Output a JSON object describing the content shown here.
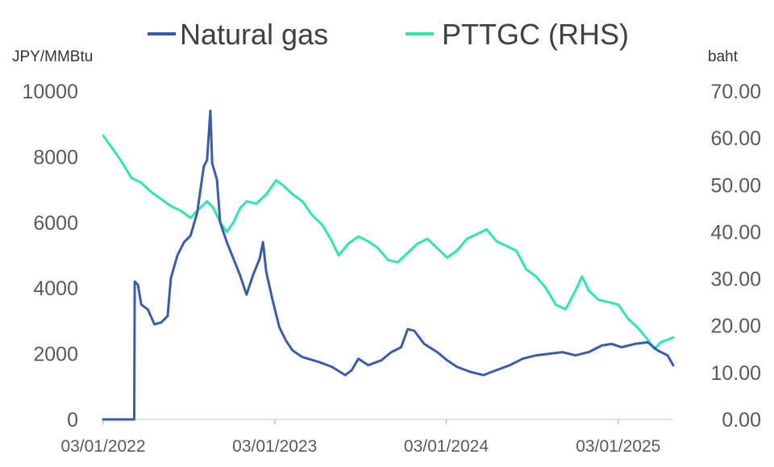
{
  "chart_data": {
    "type": "line",
    "legend_position": "top",
    "grid": false,
    "left_axis_label": "JPY/MMBtu",
    "right_axis_label": "baht",
    "y_left_ticks": [
      "0",
      "2000",
      "4000",
      "6000",
      "8000",
      "10000"
    ],
    "y_left_range": [
      0,
      10000
    ],
    "y_right_ticks": [
      "0.00",
      "10.00",
      "20.00",
      "30.00",
      "40.00",
      "50.00",
      "60.00",
      "70.00"
    ],
    "y_right_range": [
      0,
      70
    ],
    "x_ticks": [
      "03/01/2022",
      "03/01/2023",
      "03/01/2024",
      "03/01/2025"
    ],
    "x_range": [
      "2022-01-03",
      "2025-04-30"
    ],
    "series": [
      {
        "name": "Natural gas",
        "axis": "left",
        "color": "#3b5bad",
        "points": [
          [
            "2022-01-03",
            0
          ],
          [
            "2022-03-10",
            0
          ],
          [
            "2022-03-11",
            4200
          ],
          [
            "2022-03-18",
            4100
          ],
          [
            "2022-03-25",
            3500
          ],
          [
            "2022-04-08",
            3350
          ],
          [
            "2022-04-22",
            2900
          ],
          [
            "2022-05-06",
            2950
          ],
          [
            "2022-05-20",
            3150
          ],
          [
            "2022-05-27",
            4300
          ],
          [
            "2022-06-10",
            5000
          ],
          [
            "2022-06-24",
            5400
          ],
          [
            "2022-07-08",
            5600
          ],
          [
            "2022-07-22",
            6300
          ],
          [
            "2022-08-05",
            7700
          ],
          [
            "2022-08-12",
            7900
          ],
          [
            "2022-08-19",
            9400
          ],
          [
            "2022-08-23",
            7800
          ],
          [
            "2022-09-02",
            7300
          ],
          [
            "2022-09-09",
            6000
          ],
          [
            "2022-09-23",
            5400
          ],
          [
            "2022-10-07",
            4900
          ],
          [
            "2022-10-21",
            4400
          ],
          [
            "2022-11-04",
            3800
          ],
          [
            "2022-11-18",
            4400
          ],
          [
            "2022-12-02",
            4900
          ],
          [
            "2022-12-09",
            5400
          ],
          [
            "2022-12-16",
            4500
          ],
          [
            "2022-12-30",
            3600
          ],
          [
            "2023-01-13",
            2800
          ],
          [
            "2023-01-27",
            2400
          ],
          [
            "2023-02-10",
            2100
          ],
          [
            "2023-03-03",
            1900
          ],
          [
            "2023-04-07",
            1750
          ],
          [
            "2023-05-05",
            1600
          ],
          [
            "2023-06-02",
            1350
          ],
          [
            "2023-06-16",
            1500
          ],
          [
            "2023-06-30",
            1850
          ],
          [
            "2023-07-21",
            1650
          ],
          [
            "2023-08-18",
            1800
          ],
          [
            "2023-09-08",
            2050
          ],
          [
            "2023-09-29",
            2200
          ],
          [
            "2023-10-13",
            2750
          ],
          [
            "2023-10-27",
            2700
          ],
          [
            "2023-11-17",
            2300
          ],
          [
            "2023-12-15",
            2050
          ],
          [
            "2024-01-05",
            1800
          ],
          [
            "2024-01-26",
            1600
          ],
          [
            "2024-02-23",
            1450
          ],
          [
            "2024-03-22",
            1350
          ],
          [
            "2024-04-19",
            1500
          ],
          [
            "2024-05-17",
            1650
          ],
          [
            "2024-06-14",
            1850
          ],
          [
            "2024-07-12",
            1950
          ],
          [
            "2024-08-09",
            2000
          ],
          [
            "2024-09-06",
            2050
          ],
          [
            "2024-10-04",
            1950
          ],
          [
            "2024-11-01",
            2050
          ],
          [
            "2024-11-29",
            2250
          ],
          [
            "2024-12-20",
            2300
          ],
          [
            "2025-01-10",
            2200
          ],
          [
            "2025-02-07",
            2300
          ],
          [
            "2025-03-07",
            2350
          ],
          [
            "2025-03-28",
            2100
          ],
          [
            "2025-04-18",
            1950
          ],
          [
            "2025-04-30",
            1650
          ]
        ]
      },
      {
        "name": "PTTGC (RHS)",
        "axis": "right",
        "color": "#2ee6b0",
        "points": [
          [
            "2022-01-03",
            60.5
          ],
          [
            "2022-01-21",
            58.0
          ],
          [
            "2022-02-11",
            55.0
          ],
          [
            "2022-03-04",
            51.5
          ],
          [
            "2022-03-25",
            50.5
          ],
          [
            "2022-04-15",
            48.5
          ],
          [
            "2022-05-06",
            47.0
          ],
          [
            "2022-05-27",
            45.5
          ],
          [
            "2022-06-17",
            44.5
          ],
          [
            "2022-07-08",
            43.0
          ],
          [
            "2022-07-22",
            44.5
          ],
          [
            "2022-08-12",
            46.5
          ],
          [
            "2022-08-26",
            45.0
          ],
          [
            "2022-09-09",
            42.0
          ],
          [
            "2022-09-23",
            40.0
          ],
          [
            "2022-10-07",
            42.0
          ],
          [
            "2022-10-21",
            45.0
          ],
          [
            "2022-11-04",
            46.5
          ],
          [
            "2022-11-25",
            46.0
          ],
          [
            "2022-12-16",
            48.0
          ],
          [
            "2023-01-06",
            51.0
          ],
          [
            "2023-01-20",
            50.0
          ],
          [
            "2023-02-10",
            48.0
          ],
          [
            "2023-03-03",
            46.5
          ],
          [
            "2023-03-24",
            43.5
          ],
          [
            "2023-04-14",
            41.5
          ],
          [
            "2023-05-05",
            38.0
          ],
          [
            "2023-05-19",
            35.0
          ],
          [
            "2023-06-09",
            37.5
          ],
          [
            "2023-06-30",
            39.0
          ],
          [
            "2023-07-21",
            38.0
          ],
          [
            "2023-08-11",
            36.5
          ],
          [
            "2023-09-01",
            34.0
          ],
          [
            "2023-09-22",
            33.5
          ],
          [
            "2023-10-13",
            35.5
          ],
          [
            "2023-11-03",
            37.5
          ],
          [
            "2023-11-24",
            38.5
          ],
          [
            "2023-12-15",
            36.5
          ],
          [
            "2024-01-05",
            34.5
          ],
          [
            "2024-01-26",
            36.0
          ],
          [
            "2024-02-16",
            38.5
          ],
          [
            "2024-03-08",
            39.5
          ],
          [
            "2024-03-29",
            40.5
          ],
          [
            "2024-04-19",
            38.0
          ],
          [
            "2024-05-10",
            37.0
          ],
          [
            "2024-05-31",
            36.0
          ],
          [
            "2024-06-21",
            32.0
          ],
          [
            "2024-07-12",
            30.5
          ],
          [
            "2024-08-02",
            28.0
          ],
          [
            "2024-08-23",
            24.5
          ],
          [
            "2024-09-13",
            23.5
          ],
          [
            "2024-10-04",
            27.5
          ],
          [
            "2024-10-18",
            30.5
          ],
          [
            "2024-11-01",
            27.5
          ],
          [
            "2024-11-22",
            25.5
          ],
          [
            "2024-12-13",
            25.0
          ],
          [
            "2025-01-03",
            24.5
          ],
          [
            "2025-01-24",
            21.5
          ],
          [
            "2025-02-14",
            19.5
          ],
          [
            "2025-03-07",
            17.0
          ],
          [
            "2025-03-21",
            15.0
          ],
          [
            "2025-04-04",
            16.5
          ],
          [
            "2025-04-18",
            17.0
          ],
          [
            "2025-04-30",
            17.5
          ]
        ]
      }
    ]
  }
}
